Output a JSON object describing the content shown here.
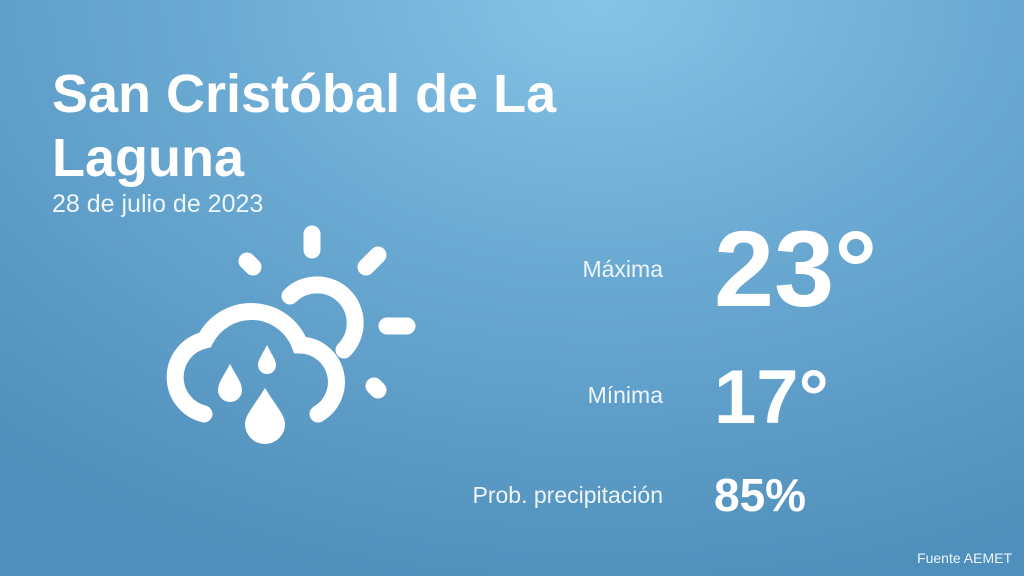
{
  "location": {
    "line1": "San Cristóbal de La",
    "line2": "Laguna"
  },
  "date": "28 de julio de 2023",
  "weather_icon": "cloud-sun-rain-icon",
  "stats": {
    "max_label": "Máxima",
    "max_value": "23°",
    "min_label": "Mínima",
    "min_value": "17°",
    "precip_label": "Prob. precipitación",
    "precip_value": "85%"
  },
  "source": "Fuente AEMET",
  "colors": {
    "bg_top": "#86c3e6",
    "bg_bottom": "#4f8fbb",
    "text": "#ffffff"
  }
}
